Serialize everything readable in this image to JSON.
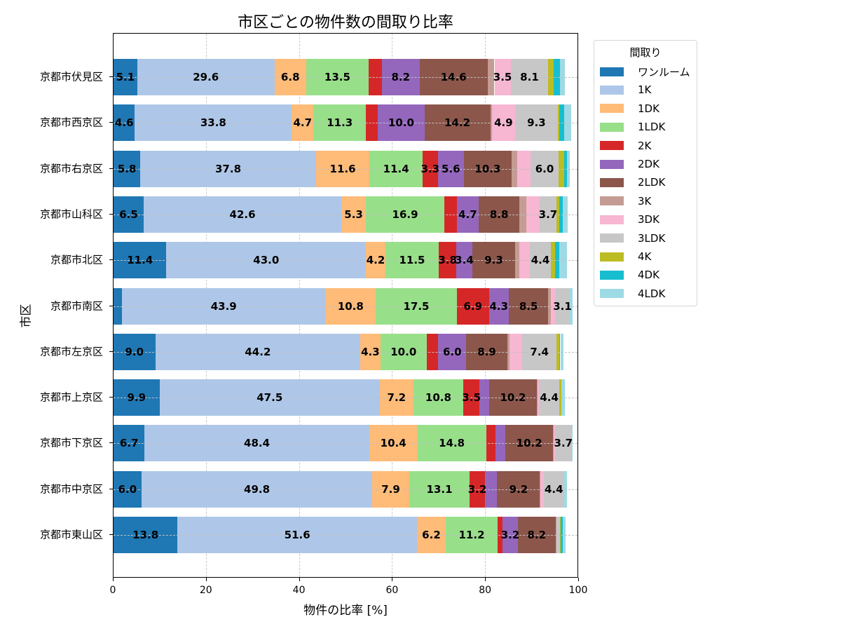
{
  "chart_data": {
    "type": "bar",
    "orientation": "horizontal",
    "stacked": true,
    "title": "市区ごとの物件数の間取り比率",
    "xlabel": "物件の比率 [%]",
    "ylabel": "市区",
    "xlim": [
      0,
      100
    ],
    "xticks": [
      "0",
      "20",
      "40",
      "60",
      "80",
      "100"
    ],
    "grid": true,
    "legend_title": "間取り",
    "legend_position": "outside-right-top",
    "categories": [
      "京都市伏見区",
      "京都市西京区",
      "京都市右京区",
      "京都市山科区",
      "京都市北区",
      "京都市南区",
      "京都市左京区",
      "京都市上京区",
      "京都市下京区",
      "京都市中京区",
      "京都市東山区"
    ],
    "series": [
      {
        "name": "ワンルーム",
        "color": "#1f77b4",
        "values": [
          5.1,
          4.6,
          5.8,
          6.5,
          11.4,
          1.8,
          9.0,
          9.9,
          6.7,
          6.0,
          13.8
        ]
      },
      {
        "name": "1K",
        "color": "#aec7e8",
        "values": [
          29.6,
          33.8,
          37.8,
          42.6,
          43.0,
          43.9,
          44.2,
          47.5,
          48.4,
          49.8,
          51.6
        ]
      },
      {
        "name": "1DK",
        "color": "#ffbb78",
        "values": [
          6.8,
          4.7,
          11.6,
          5.3,
          4.2,
          10.8,
          4.3,
          7.2,
          10.4,
          7.9,
          6.2
        ]
      },
      {
        "name": "1LDK",
        "color": "#98df8a",
        "values": [
          13.5,
          11.3,
          11.4,
          16.9,
          11.5,
          17.5,
          10.0,
          10.8,
          14.8,
          13.1,
          11.2
        ]
      },
      {
        "name": "2K",
        "color": "#d62728",
        "values": [
          2.8,
          2.6,
          3.3,
          2.7,
          3.8,
          6.9,
          2.5,
          3.5,
          2.1,
          3.2,
          1.1
        ]
      },
      {
        "name": "2DK",
        "color": "#9467bd",
        "values": [
          8.2,
          10.0,
          5.6,
          4.7,
          3.4,
          4.3,
          6.0,
          2.1,
          2.1,
          2.7,
          3.2
        ]
      },
      {
        "name": "2LDK",
        "color": "#8c564b",
        "values": [
          14.6,
          14.2,
          10.3,
          8.8,
          9.3,
          8.5,
          8.9,
          10.2,
          10.2,
          9.2,
          8.2
        ]
      },
      {
        "name": "3K",
        "color": "#c49c94",
        "values": [
          1.5,
          0.4,
          1.2,
          1.4,
          0.8,
          0.6,
          0.5,
          0.2,
          0.1,
          0.1,
          0.2
        ]
      },
      {
        "name": "3DK",
        "color": "#f7b6d2",
        "values": [
          3.5,
          4.9,
          2.9,
          2.9,
          2.4,
          0.9,
          2.7,
          0.3,
          0.3,
          0.7,
          0.0
        ]
      },
      {
        "name": "3LDK",
        "color": "#c7c7c7",
        "values": [
          8.1,
          9.3,
          6.0,
          3.7,
          4.4,
          3.1,
          7.4,
          4.4,
          3.7,
          4.4,
          0.7
        ]
      },
      {
        "name": "4K",
        "color": "#bcbd22",
        "values": [
          1.2,
          0.3,
          1.2,
          0.6,
          0.9,
          0.0,
          0.6,
          0.5,
          0.0,
          0.1,
          0.1
        ]
      },
      {
        "name": "4DK",
        "color": "#17becf",
        "values": [
          1.3,
          1.1,
          0.7,
          0.7,
          0.9,
          0.0,
          0.2,
          0.0,
          0.0,
          0.0,
          0.6
        ]
      },
      {
        "name": "4LDK",
        "color": "#9edae5",
        "values": [
          1.1,
          1.5,
          0.5,
          1.1,
          1.7,
          0.6,
          0.7,
          0.7,
          0.2,
          0.6,
          0.6
        ]
      }
    ],
    "label_threshold": 3.0
  }
}
